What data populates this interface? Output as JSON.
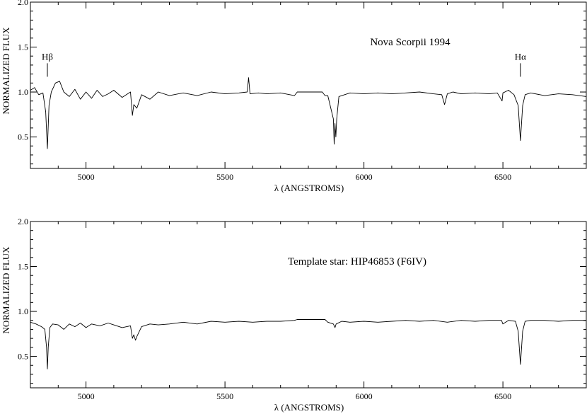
{
  "chart_data": [
    {
      "type": "line",
      "title": "",
      "annotation": "Nova Scorpii 1994",
      "xlabel": "λ (ANGSTROMS)",
      "ylabel": "NORMALIZED FLUX",
      "xlim": [
        4800,
        6800
      ],
      "ylim": [
        0.15,
        2.0
      ],
      "xticks": [
        5000,
        5500,
        6000,
        6500
      ],
      "xtick_labels": [
        "5000",
        "5500",
        "6000",
        "6500"
      ],
      "yticks": [
        0.5,
        1.0,
        1.5,
        2.0
      ],
      "ytick_labels": [
        "0.5",
        "1.0",
        "1.5",
        "2.0"
      ],
      "grid": false,
      "line_markers": [
        {
          "label": "Hβ",
          "x": 4861,
          "y_start": 1.17,
          "y_end": 1.32
        },
        {
          "label": "Hα",
          "x": 6563,
          "y_start": 1.17,
          "y_end": 1.32
        }
      ],
      "series": [
        {
          "x": [
            4800,
            4815,
            4830,
            4845,
            4855,
            4861,
            4867,
            4875,
            4890,
            4905,
            4920,
            4940,
            4960,
            4980,
            5000,
            5020,
            5040,
            5060,
            5080,
            5100,
            5130,
            5160,
            5167,
            5172,
            5183,
            5200,
            5230,
            5260,
            5300,
            5350,
            5400,
            5450,
            5500,
            5550,
            5580,
            5585,
            5590,
            5620,
            5650,
            5700,
            5750,
            5760,
            5770,
            5850,
            5860,
            5870,
            5890,
            5893,
            5896,
            5899,
            5902,
            5910,
            5950,
            6000,
            6050,
            6100,
            6150,
            6200,
            6250,
            6280,
            6290,
            6300,
            6320,
            6350,
            6400,
            6450,
            6480,
            6497,
            6500,
            6520,
            6540,
            6555,
            6563,
            6571,
            6580,
            6600,
            6650,
            6700,
            6750,
            6800
          ],
          "values": [
            1.02,
            1.05,
            0.97,
            0.99,
            0.78,
            0.37,
            0.85,
            1.0,
            1.1,
            1.12,
            1.0,
            0.95,
            1.03,
            0.92,
            1.0,
            0.93,
            1.02,
            0.95,
            0.98,
            1.02,
            0.94,
            1.0,
            0.74,
            0.86,
            0.82,
            0.97,
            0.92,
            1.0,
            0.96,
            0.99,
            0.96,
            1.0,
            0.98,
            0.99,
            1.0,
            1.16,
            0.98,
            0.99,
            0.98,
            0.99,
            0.96,
            1.0,
            1.0,
            1.0,
            0.96,
            0.96,
            0.7,
            0.42,
            0.65,
            0.5,
            0.7,
            0.95,
            0.99,
            0.98,
            0.99,
            0.98,
            0.99,
            1.0,
            0.98,
            0.97,
            0.86,
            0.98,
            1.0,
            0.98,
            0.99,
            0.98,
            0.99,
            0.9,
            0.99,
            1.02,
            0.97,
            0.85,
            0.46,
            0.85,
            0.97,
            0.99,
            0.96,
            0.98,
            0.97,
            0.95
          ]
        }
      ]
    },
    {
      "type": "line",
      "title": "",
      "annotation": "Template star: HIP46853 (F6IV)",
      "xlabel": "λ (ANGSTROMS)",
      "ylabel": "NORMALIZED FLUX",
      "xlim": [
        4800,
        6800
      ],
      "ylim": [
        0.15,
        2.0
      ],
      "xticks": [
        5000,
        5500,
        6000,
        6500
      ],
      "xtick_labels": [
        "5000",
        "5500",
        "6000",
        "6500"
      ],
      "yticks": [
        0.5,
        1.0,
        1.5,
        2.0
      ],
      "ytick_labels": [
        "0.5",
        "1.0",
        "1.5",
        "2.0"
      ],
      "grid": false,
      "line_markers": [],
      "series": [
        {
          "x": [
            4800,
            4820,
            4840,
            4852,
            4858,
            4861,
            4864,
            4870,
            4880,
            4900,
            4920,
            4940,
            4960,
            4980,
            5000,
            5020,
            5050,
            5080,
            5100,
            5130,
            5160,
            5167,
            5172,
            5178,
            5183,
            5200,
            5230,
            5260,
            5300,
            5350,
            5400,
            5450,
            5500,
            5550,
            5600,
            5650,
            5700,
            5750,
            5760,
            5860,
            5870,
            5890,
            5896,
            5900,
            5920,
            5950,
            6000,
            6050,
            6100,
            6150,
            6200,
            6250,
            6300,
            6350,
            6400,
            6450,
            6495,
            6500,
            6520,
            6545,
            6555,
            6563,
            6571,
            6580,
            6600,
            6650,
            6700,
            6750,
            6800
          ],
          "values": [
            0.88,
            0.86,
            0.83,
            0.8,
            0.6,
            0.36,
            0.6,
            0.82,
            0.86,
            0.85,
            0.8,
            0.86,
            0.83,
            0.87,
            0.82,
            0.86,
            0.84,
            0.87,
            0.85,
            0.82,
            0.84,
            0.7,
            0.74,
            0.68,
            0.72,
            0.83,
            0.86,
            0.85,
            0.86,
            0.88,
            0.86,
            0.89,
            0.88,
            0.89,
            0.88,
            0.89,
            0.89,
            0.9,
            0.91,
            0.91,
            0.88,
            0.86,
            0.82,
            0.86,
            0.89,
            0.88,
            0.89,
            0.88,
            0.89,
            0.9,
            0.89,
            0.9,
            0.88,
            0.9,
            0.89,
            0.9,
            0.9,
            0.86,
            0.9,
            0.89,
            0.78,
            0.41,
            0.78,
            0.89,
            0.9,
            0.9,
            0.89,
            0.9,
            0.9
          ]
        }
      ]
    }
  ]
}
